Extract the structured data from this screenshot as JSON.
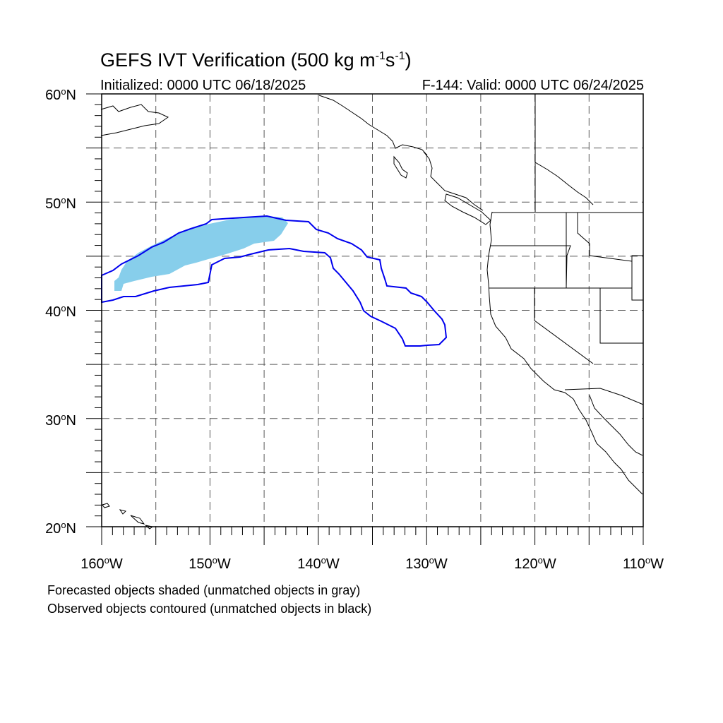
{
  "title": {
    "prefix": "GEFS IVT Verification (500 kg m",
    "sup1": "-1",
    "middle": "s",
    "sup2": "-1",
    "suffix": ")"
  },
  "initialized": "Initialized: 0000 UTC 06/18/2025",
  "valid": "F-144: Valid: 0000 UTC 06/24/2025",
  "lat_labels": [
    {
      "num": "60",
      "dir": "N"
    },
    {
      "num": "50",
      "dir": "N"
    },
    {
      "num": "40",
      "dir": "N"
    },
    {
      "num": "30",
      "dir": "N"
    },
    {
      "num": "20",
      "dir": "N"
    }
  ],
  "lon_labels": [
    {
      "num": "160",
      "dir": "W"
    },
    {
      "num": "150",
      "dir": "W"
    },
    {
      "num": "140",
      "dir": "W"
    },
    {
      "num": "130",
      "dir": "W"
    },
    {
      "num": "120",
      "dir": "W"
    },
    {
      "num": "110",
      "dir": "W"
    }
  ],
  "notes": {
    "forecast": "Forecasted objects shaded (unmatched objects in gray)",
    "observed": "Observed objects contoured (unmatched objects in black)"
  },
  "map": {
    "lat_range": [
      20,
      60
    ],
    "lon_range": [
      -160,
      -110
    ],
    "grid_spacing_deg": 5,
    "minor_tick_deg": 1,
    "grid_style": "dashed",
    "colors": {
      "forecast_fill": "#87ceeb",
      "observed_contour": "#0000ee",
      "coastline": "#000000",
      "grid": "#000000"
    }
  }
}
